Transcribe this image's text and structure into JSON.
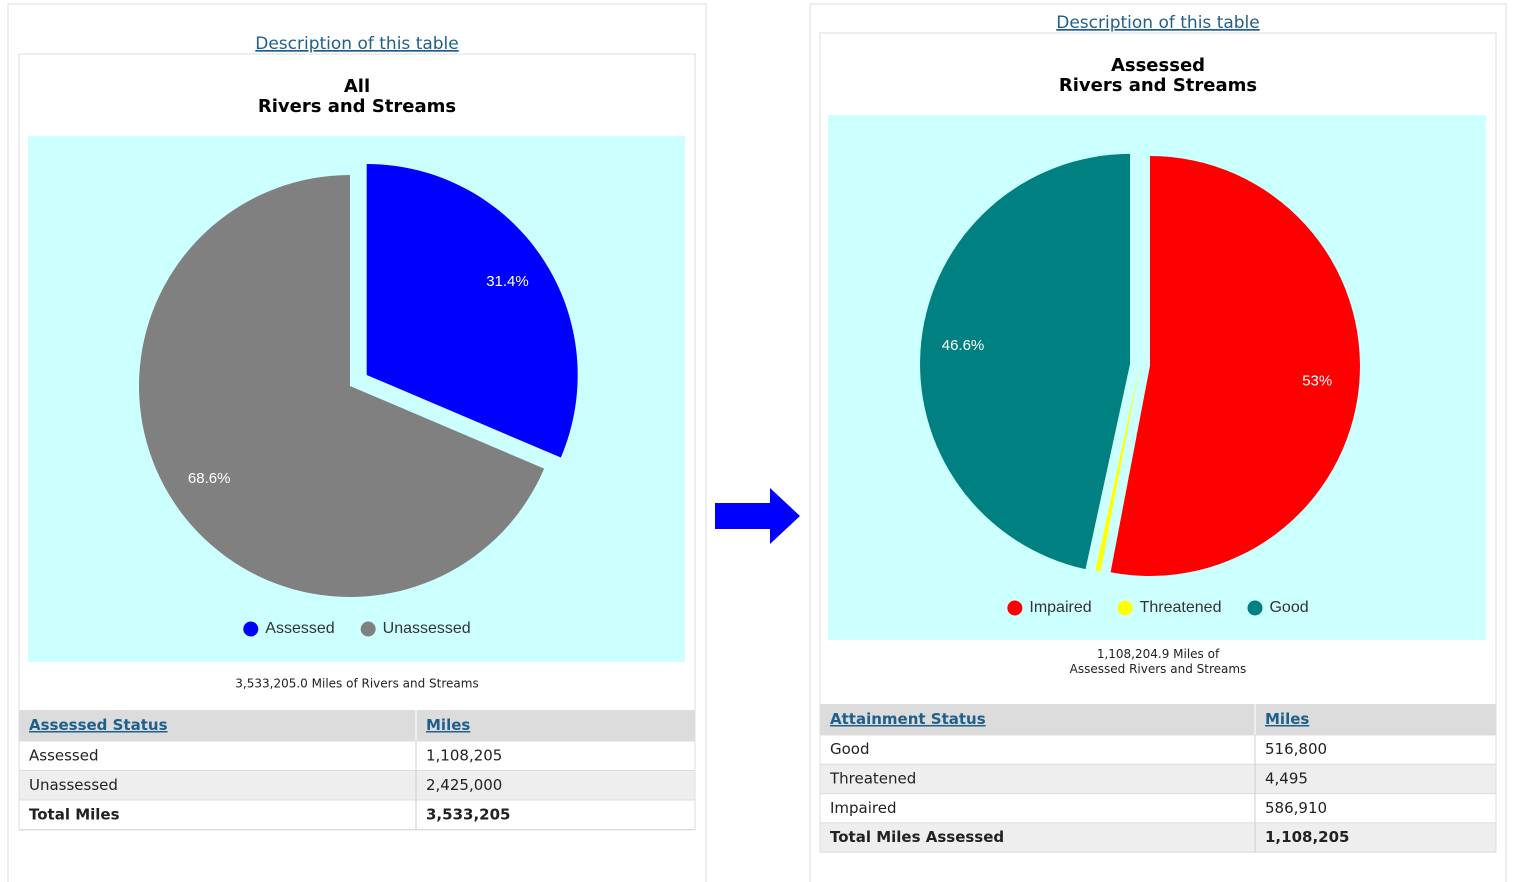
{
  "chart_data": [
    {
      "type": "pie",
      "title": [
        "All",
        "Rivers and Streams"
      ],
      "categories": [
        "Assessed",
        "Unassessed"
      ],
      "values": [
        31.4,
        68.6
      ],
      "value_labels": [
        "31.4%",
        "68.6%"
      ],
      "colors": [
        "#0000ff",
        "#808080"
      ],
      "legend": "bottom",
      "caption": [
        "3,533,205.0 Miles of Rivers and Streams"
      ]
    },
    {
      "type": "pie",
      "title": [
        "Assessed",
        "Rivers and Streams"
      ],
      "categories": [
        "Impaired",
        "Threatened",
        "Good"
      ],
      "values": [
        53,
        0.4,
        46.6
      ],
      "value_labels": [
        "53%",
        null,
        "46.6%"
      ],
      "colors": [
        "#ff0000",
        "#ffff00",
        "#008080"
      ],
      "legend": "bottom",
      "caption": [
        "1,108,204.9 Miles of",
        "Assessed Rivers and Streams"
      ]
    }
  ],
  "tables": [
    {
      "link": "Description of this table",
      "header": [
        "Assessed Status",
        "Miles"
      ],
      "rows": [
        [
          "Assessed",
          "1,108,205"
        ],
        [
          "Unassessed",
          "2,425,000"
        ],
        [
          "Total Miles",
          "3,533,205"
        ]
      ]
    },
    {
      "link": "Description of this table",
      "header": [
        "Attainment Status",
        "Miles"
      ],
      "rows": [
        [
          "Good",
          "516,800"
        ],
        [
          "Threatened",
          "4,495"
        ],
        [
          "Impaired",
          "586,910"
        ],
        [
          "Total Miles Assessed",
          "1,108,205"
        ]
      ]
    }
  ]
}
